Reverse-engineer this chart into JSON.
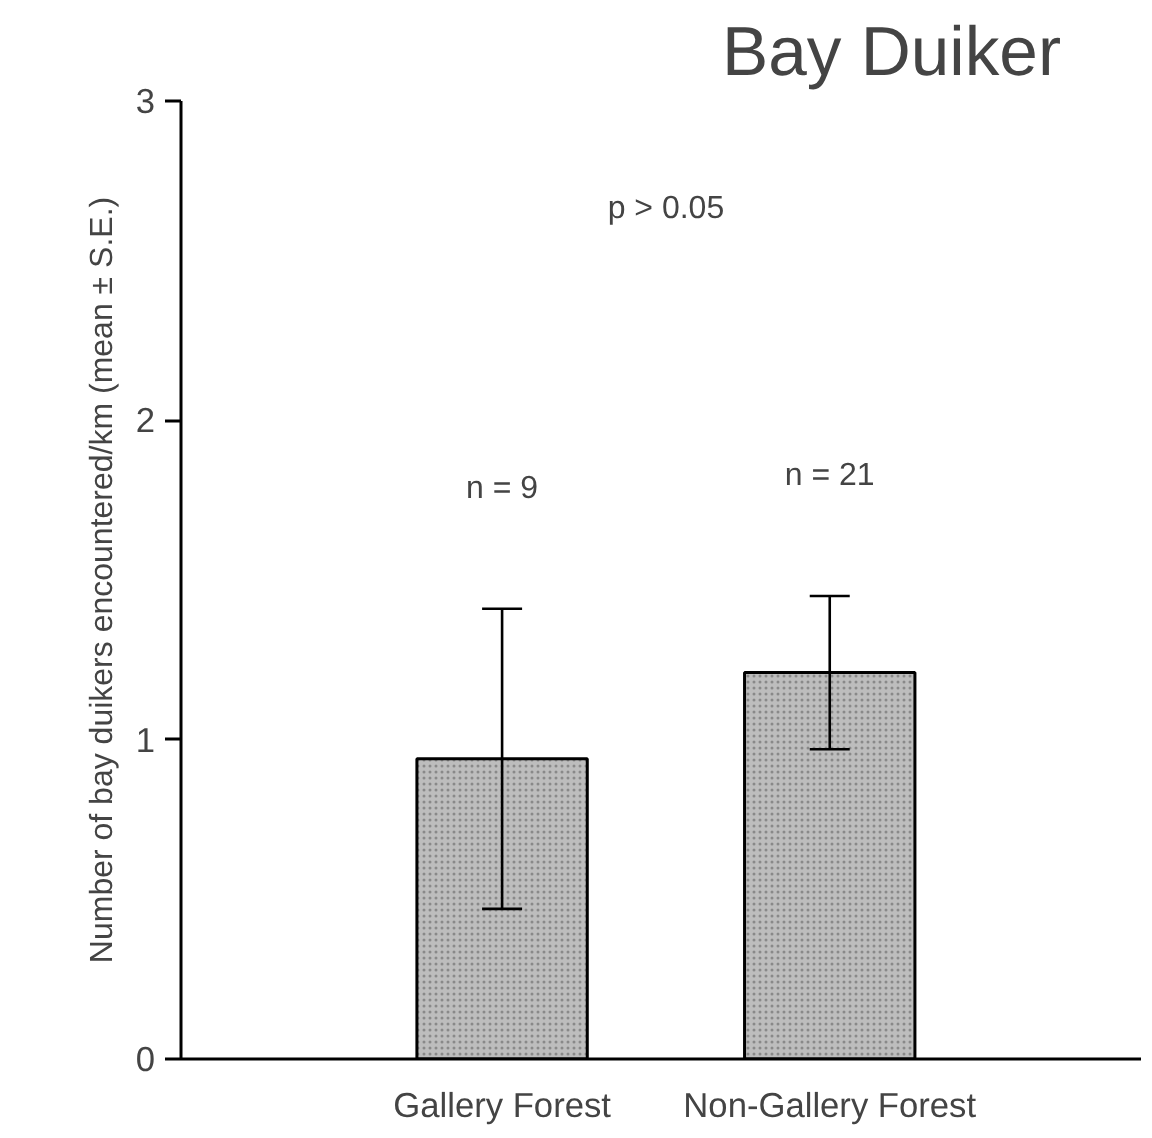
{
  "chart_data": {
    "type": "bar",
    "title": "Bay Duiker",
    "ylabel": "Number of bay duikers encountered/km (mean ± S.E.)",
    "categories": [
      "Gallery Forest",
      "Non-Gallery Forest"
    ],
    "values": [
      0.94,
      1.21
    ],
    "errors": [
      0.47,
      0.24
    ],
    "color": "#bdbdbd",
    "ylim": [
      0,
      3
    ],
    "yticks": [
      0,
      1,
      2,
      3
    ],
    "grid": false,
    "annotations": [
      "n = 9",
      "n = 21",
      "p > 0.05"
    ]
  }
}
